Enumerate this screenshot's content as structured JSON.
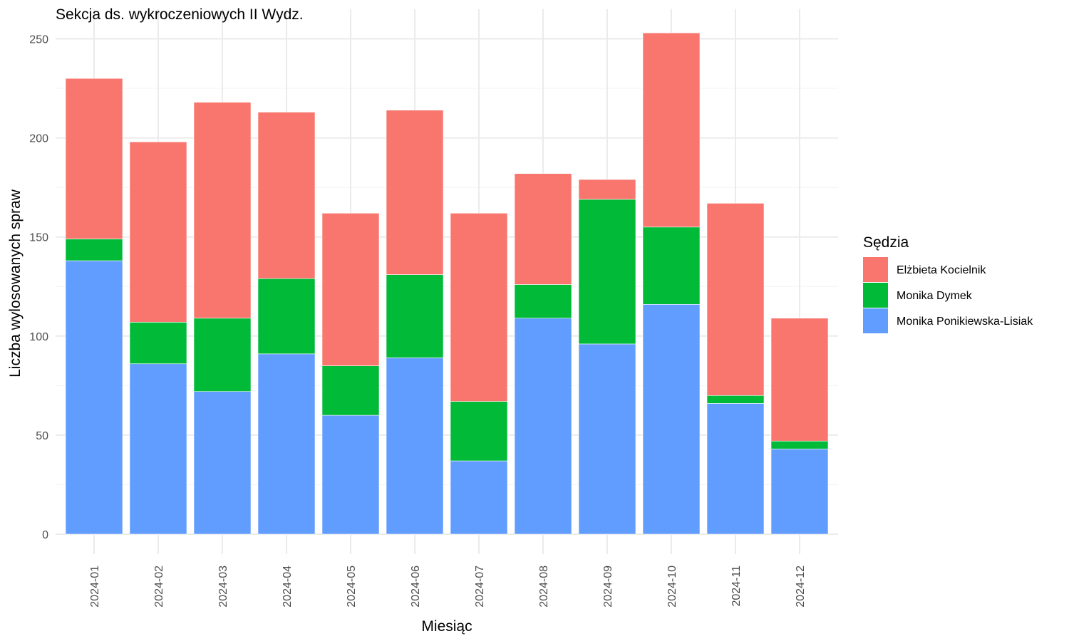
{
  "chart_data": {
    "type": "bar",
    "stacked": true,
    "title": "Sekcja ds. wykroczeniowych II Wydz.",
    "xlabel": "Miesiąc",
    "ylabel": "Liczba wylosowanych spraw",
    "ylim": [
      0,
      265
    ],
    "yticks": [
      0,
      50,
      100,
      150,
      200,
      250
    ],
    "grid": true,
    "legend": {
      "title": "Sędzia",
      "position": "right"
    },
    "categories": [
      "2024-01",
      "2024-02",
      "2024-03",
      "2024-04",
      "2024-05",
      "2024-06",
      "2024-07",
      "2024-08",
      "2024-09",
      "2024-10",
      "2024-11",
      "2024-12"
    ],
    "series": [
      {
        "name": "Monika Ponikiewska-Lisiak",
        "color": "#619CFF",
        "values": [
          138,
          86,
          72,
          91,
          60,
          89,
          37,
          109,
          96,
          116,
          66,
          43
        ]
      },
      {
        "name": "Monika Dymek",
        "color": "#00BA38",
        "values": [
          11,
          21,
          37,
          38,
          25,
          42,
          30,
          17,
          73,
          39,
          4,
          4
        ]
      },
      {
        "name": "Elżbieta Kocielnik",
        "color": "#F8766D",
        "values": [
          81,
          91,
          109,
          84,
          77,
          83,
          95,
          56,
          10,
          98,
          97,
          62
        ]
      }
    ],
    "legend_order": [
      "Elżbieta Kocielnik",
      "Monika Dymek",
      "Monika Ponikiewska-Lisiak"
    ]
  }
}
